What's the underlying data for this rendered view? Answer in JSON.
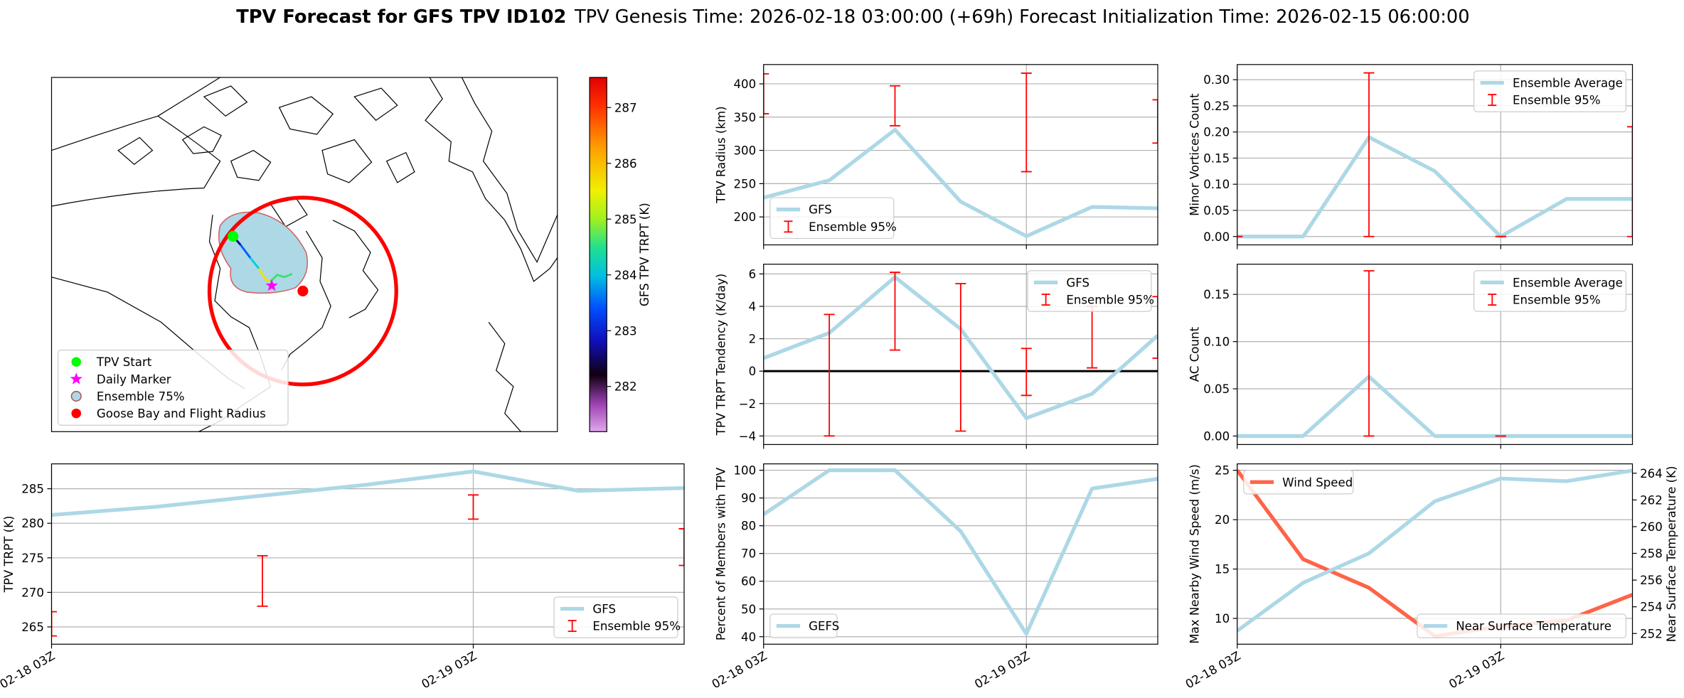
{
  "title": "TPV Forecast for GFS TPV ID102",
  "genesis": "TPV Genesis Time: 2026-02-18 03:00:00 (+69h)",
  "init": "Forecast Initialization Time: 2026-02-15 06:00:00",
  "chart_data": [
    {
      "type": "map",
      "legend_loc": "lower left",
      "legend": [
        {
          "label": "TPV Start",
          "marker": "circle",
          "color": "#00ff00"
        },
        {
          "label": "Daily Marker",
          "marker": "star",
          "color": "#ff00ff"
        },
        {
          "label": "Ensemble 75%",
          "marker": "circle",
          "color": "#add8e6",
          "edge": "#b05050"
        },
        {
          "label": "Goose Bay and Flight Radius",
          "marker": "circle",
          "color": "#ff0000"
        }
      ],
      "colorbar": {
        "label": "GFS TPV TRPT (K)",
        "lim": [
          281.19,
          287.54
        ],
        "ticks": [
          282,
          283,
          284,
          285,
          286,
          287
        ]
      }
    },
    {
      "type": "line",
      "ylabel": "TPV Radius (km)",
      "x": [
        0,
        6,
        12,
        18,
        24,
        30,
        36
      ],
      "xlim": [
        0,
        36
      ],
      "xticks": [
        0,
        24
      ],
      "ylim": [
        158,
        429
      ],
      "yticks": [
        200,
        250,
        300,
        350,
        400
      ],
      "grid": true,
      "legend": "lower left",
      "series": [
        {
          "name": "GFS",
          "color": "#add8e6",
          "values": [
            229,
            255,
            331,
            223,
            171,
            215,
            213
          ]
        },
        {
          "name": "Ensemble 95%",
          "type": "errorbar",
          "color": "#ff0000",
          "x": [
            0,
            12,
            24,
            36
          ],
          "lows": [
            355,
            337,
            268,
            311
          ],
          "highs": [
            415,
            397,
            416,
            376
          ]
        }
      ]
    },
    {
      "type": "line",
      "ylabel": "Minor Vortices Count",
      "x": [
        0,
        6,
        12,
        18,
        24,
        30,
        36
      ],
      "xlim": [
        0,
        36
      ],
      "xticks": [
        0,
        24
      ],
      "ylim": [
        -0.016,
        0.329
      ],
      "yticks": [
        {
          "value": 0,
          "label": "0.00"
        },
        {
          "value": 0.05,
          "label": "0.05"
        },
        {
          "value": 0.1,
          "label": "0.10"
        },
        {
          "value": 0.15,
          "label": "0.15"
        },
        {
          "value": 0.2,
          "label": "0.20"
        },
        {
          "value": 0.25,
          "label": "0.25"
        },
        {
          "value": 0.3,
          "label": "0.30"
        }
      ],
      "grid": true,
      "legend": "upper right",
      "series": [
        {
          "name": "Ensemble Average",
          "color": "#add8e6",
          "values": [
            0,
            0,
            0.19,
            0.125,
            0,
            0.072,
            0.072
          ]
        },
        {
          "name": "Ensemble 95%",
          "type": "errorbar",
          "color": "#ff0000",
          "x": [
            0,
            12,
            24,
            36
          ],
          "lows": [
            0,
            0,
            0,
            0
          ],
          "highs": [
            0,
            0.313,
            0,
            0.21
          ]
        }
      ]
    },
    {
      "type": "line",
      "ylabel": "TPV TRPT Tendency (K/day)",
      "x": [
        0,
        6,
        12,
        18,
        24,
        30,
        36
      ],
      "xlim": [
        0,
        36
      ],
      "xticks": [
        0,
        24
      ],
      "ylim": [
        -4.53,
        6.6
      ],
      "yticks": [
        {
          "value": -4,
          "label": "−4"
        },
        {
          "value": -2,
          "label": "−2"
        },
        0,
        2,
        4,
        6
      ],
      "grid": true,
      "hline": 0,
      "legend": "upper right",
      "series": [
        {
          "name": "GFS",
          "color": "#add8e6",
          "values": [
            0.8,
            2.36,
            5.8,
            2.6,
            -2.9,
            -1.4,
            2.2
          ]
        },
        {
          "name": "Ensemble 95%",
          "type": "errorbar",
          "color": "#ff0000",
          "x": [
            6,
            12,
            18,
            24,
            30,
            36
          ],
          "lows": [
            -4.0,
            1.3,
            -3.7,
            -1.5,
            0.2,
            0.8
          ],
          "highs": [
            3.5,
            6.1,
            5.4,
            1.4,
            4.0,
            4.6
          ]
        }
      ]
    },
    {
      "type": "line",
      "ylabel": "AC Count",
      "x": [
        0,
        6,
        12,
        18,
        24,
        30,
        36
      ],
      "xlim": [
        0,
        36
      ],
      "xticks": [
        0,
        24
      ],
      "ylim": [
        -0.009,
        0.182
      ],
      "yticks": [
        {
          "value": 0,
          "label": "0.00"
        },
        {
          "value": 0.05,
          "label": "0.05"
        },
        {
          "value": 0.1,
          "label": "0.10"
        },
        {
          "value": 0.15,
          "label": "0.15"
        }
      ],
      "grid": true,
      "legend": "upper right",
      "series": [
        {
          "name": "Ensemble Average",
          "color": "#add8e6",
          "values": [
            0,
            0,
            0.063,
            0,
            0,
            0,
            0
          ]
        },
        {
          "name": "Ensemble 95%",
          "type": "errorbar",
          "color": "#ff0000",
          "x": [
            12,
            24
          ],
          "lows": [
            0,
            0
          ],
          "highs": [
            0.175,
            0
          ]
        }
      ]
    },
    {
      "type": "line",
      "ylabel": "TPV TRPT (K)",
      "x": [
        0,
        6,
        12,
        18,
        24,
        30,
        36
      ],
      "xlim": [
        0,
        36
      ],
      "xticks": [
        {
          "value": 0,
          "label": "02-18 03Z"
        },
        {
          "value": 24,
          "label": "02-19 03Z"
        }
      ],
      "ylim": [
        262.5,
        288.6
      ],
      "yticks": [
        265,
        270,
        275,
        280,
        285
      ],
      "grid": true,
      "legend": "lower right",
      "series": [
        {
          "name": "GFS",
          "color": "#add8e6",
          "values": [
            281.2,
            282.4,
            284,
            285.6,
            287.5,
            284.7,
            285.1
          ]
        },
        {
          "name": "Ensemble 95%",
          "type": "errorbar",
          "color": "#ff0000",
          "x": [
            0,
            12,
            24,
            36
          ],
          "lows": [
            263.7,
            268,
            280.6,
            273.9
          ],
          "highs": [
            267.2,
            275.3,
            284.1,
            279.2
          ]
        }
      ]
    },
    {
      "type": "line",
      "ylabel": "Percent of Members with TPV",
      "x": [
        0,
        6,
        12,
        18,
        24,
        30,
        36
      ],
      "xlim": [
        0,
        36
      ],
      "xticks": [
        {
          "value": 0,
          "label": "02-18 03Z"
        },
        {
          "value": 24,
          "label": "02-19 03Z"
        }
      ],
      "ylim": [
        37.3,
        102.3
      ],
      "yticks": [
        40,
        50,
        60,
        70,
        80,
        90,
        100
      ],
      "grid": true,
      "legend": "lower left",
      "series": [
        {
          "name": "GEFS",
          "color": "#add8e6",
          "values": [
            84.1,
            100,
            100,
            78,
            41,
            93.4,
            96.9
          ]
        }
      ]
    },
    {
      "type": "line",
      "ylabel": "Max Nearby Wind Speed (m/s)",
      "ylabel_color": "#ff6347",
      "y2label": "Near Surface Temperature (K)",
      "y2label_color": "#4169e1",
      "x": [
        0,
        6,
        12,
        18,
        24,
        30,
        36
      ],
      "xlim": [
        0,
        36
      ],
      "xticks": [
        {
          "value": 0,
          "label": "02-18 03Z"
        },
        {
          "value": 24,
          "label": "02-19 03Z"
        }
      ],
      "ylim": [
        7.39,
        25.65
      ],
      "yticks": [
        10,
        15,
        20,
        25
      ],
      "y2lim": [
        251.2,
        264.7
      ],
      "y2ticks": [
        252,
        254,
        256,
        258,
        260,
        262,
        264
      ],
      "grid": true,
      "series": [
        {
          "name": "Wind Speed",
          "color": "#ff6347",
          "legend": "upper left",
          "values": [
            25,
            16,
            13.1,
            8.2,
            9.2,
            9.8,
            12.4
          ]
        },
        {
          "name": "Near Surface Temperature",
          "color": "#add8e6",
          "axis": "y2",
          "legend": "lower right",
          "values": [
            252.2,
            255.8,
            258.0,
            261.9,
            263.6,
            263.4,
            264.2
          ]
        }
      ]
    }
  ]
}
